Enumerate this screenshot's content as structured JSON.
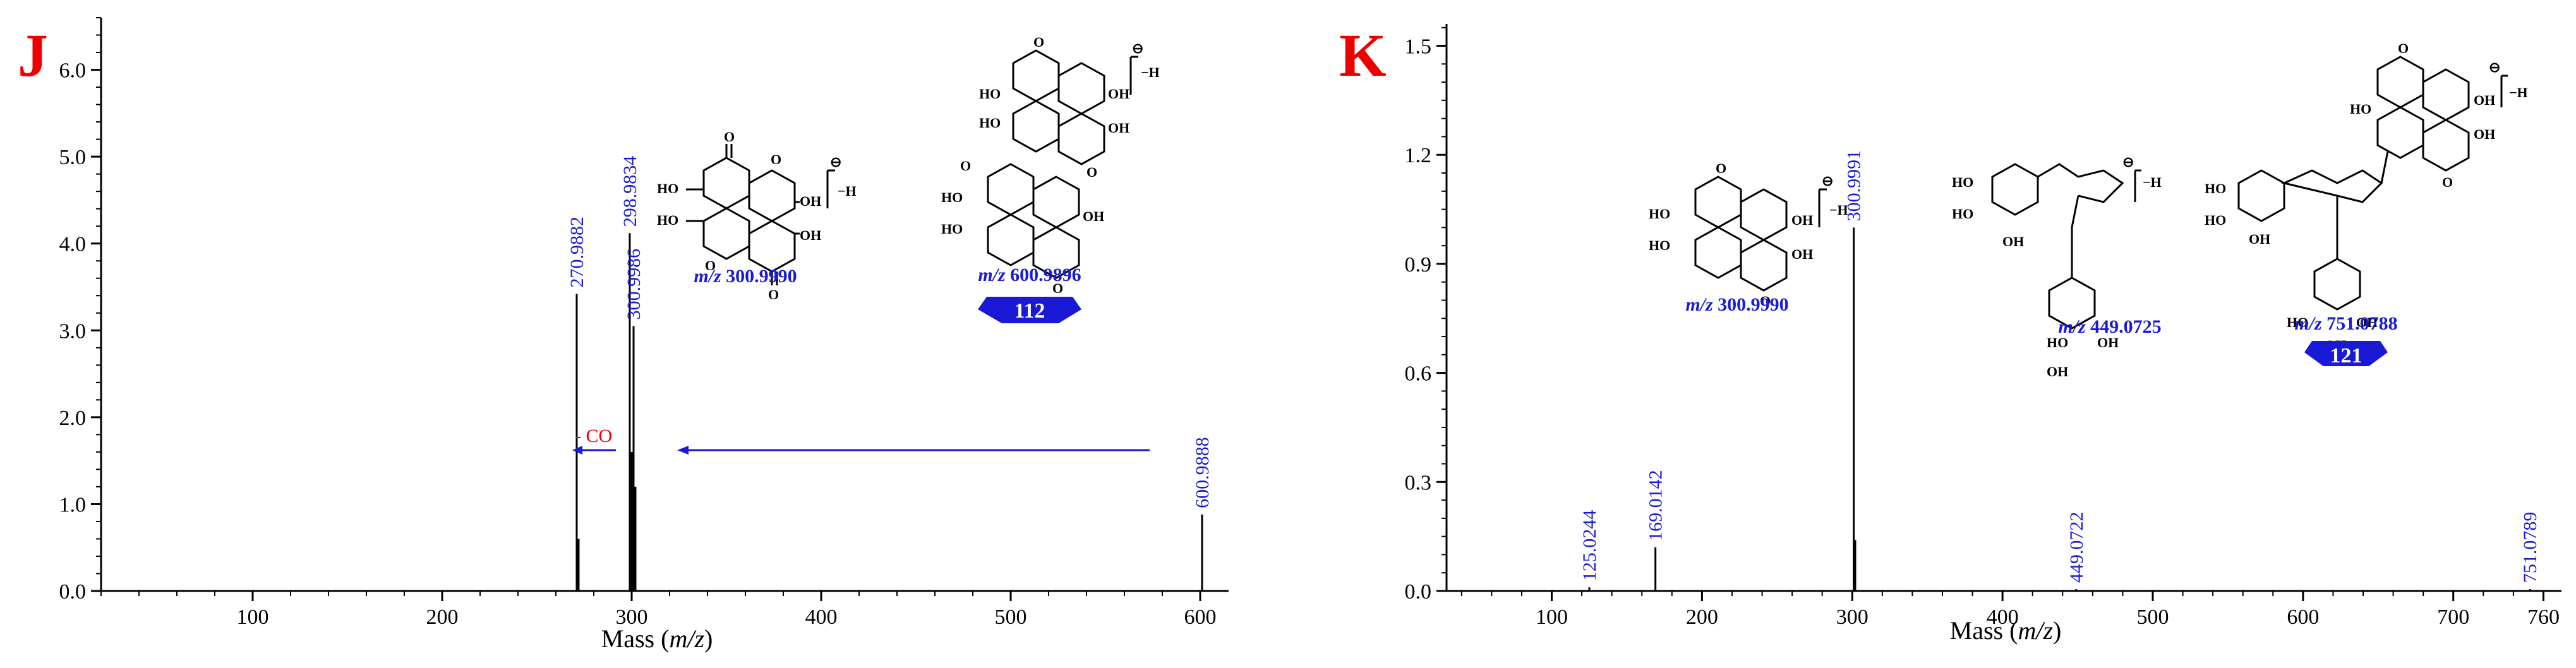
{
  "chart_data": [
    {
      "panel": "J",
      "type": "bar",
      "xlabel_prefix": "Mass (",
      "xlabel_italic": "m/z",
      "xlabel_suffix": ")",
      "xlim": [
        20,
        615
      ],
      "ylim": [
        0,
        6.6
      ],
      "xticks": [
        100,
        200,
        300,
        400,
        500,
        600
      ],
      "yticks": [
        0.0,
        1.0,
        2.0,
        3.0,
        4.0,
        5.0,
        6.0
      ],
      "ytick_labels": [
        "0.0",
        "1.0",
        "2.0",
        "3.0",
        "4.0",
        "5.0",
        "6.0"
      ],
      "peaks": [
        {
          "mz": 270.9882,
          "intensity": 3.42,
          "label": "270.9882"
        },
        {
          "mz": 271.99,
          "intensity": 0.6,
          "label": ""
        },
        {
          "mz": 298.9834,
          "intensity": 4.12,
          "label": "298.9834"
        },
        {
          "mz": 299.99,
          "intensity": 1.6,
          "label": ""
        },
        {
          "mz": 300.9986,
          "intensity": 3.05,
          "label": "300.9986"
        },
        {
          "mz": 301.99,
          "intensity": 1.2,
          "label": ""
        },
        {
          "mz": 600.9888,
          "intensity": 0.88,
          "label": "600.9888"
        }
      ],
      "annotations": {
        "loss_label": "- CO",
        "structures": [
          {
            "mz_label_prefix": "m/z",
            "mz_label_value": "300.9990",
            "charge": "⊖",
            "suffix": "−H"
          },
          {
            "mz_label_prefix": "m/z",
            "mz_label_value": "600.9896",
            "charge": "⊖",
            "suffix": "−H",
            "badge": "112"
          }
        ]
      }
    },
    {
      "panel": "K",
      "type": "bar",
      "xlabel_prefix": "Mass (",
      "xlabel_italic": "m/z",
      "xlabel_suffix": ")",
      "xlim": [
        30,
        772
      ],
      "ylim": [
        0,
        1.56
      ],
      "xticks": [
        100,
        200,
        300,
        400,
        500,
        600,
        700,
        760
      ],
      "yticks": [
        0.0,
        0.3,
        0.6,
        0.9,
        1.2,
        1.5
      ],
      "ytick_labels": [
        "0.0",
        "0.3",
        "0.6",
        "0.9",
        "1.2",
        "1.5"
      ],
      "peaks": [
        {
          "mz": 125.0244,
          "intensity": 0.01,
          "label": "125.0244"
        },
        {
          "mz": 169.0142,
          "intensity": 0.12,
          "label": "169.0142"
        },
        {
          "mz": 300.9991,
          "intensity": 1.0,
          "label": "300.9991"
        },
        {
          "mz": 301.99,
          "intensity": 0.14,
          "label": ""
        },
        {
          "mz": 449.0722,
          "intensity": 0.005,
          "label": "449.0722"
        },
        {
          "mz": 751.0789,
          "intensity": 0.005,
          "label": "751.0789"
        }
      ],
      "annotations": {
        "structures": [
          {
            "mz_label_prefix": "m/z",
            "mz_label_value": "300.9990",
            "charge": "⊖",
            "suffix": "−H"
          },
          {
            "mz_label_prefix": "m/z",
            "mz_label_value": "449.0725",
            "charge": "⊖",
            "suffix": "−H"
          },
          {
            "mz_label_prefix": "m/z",
            "mz_label_value": "751.0788",
            "charge": "⊖",
            "suffix": "−H",
            "badge": "121"
          }
        ]
      }
    }
  ],
  "struct_text": {
    "oh": "OH",
    "ho": "HO",
    "o": "O"
  },
  "colors": {
    "panel_letter": "#ee0000",
    "peak_label": "#1a1ad6",
    "loss_label": "#ee0000",
    "arrow": "#1a1ad6",
    "badge": "#1a1ad6"
  }
}
